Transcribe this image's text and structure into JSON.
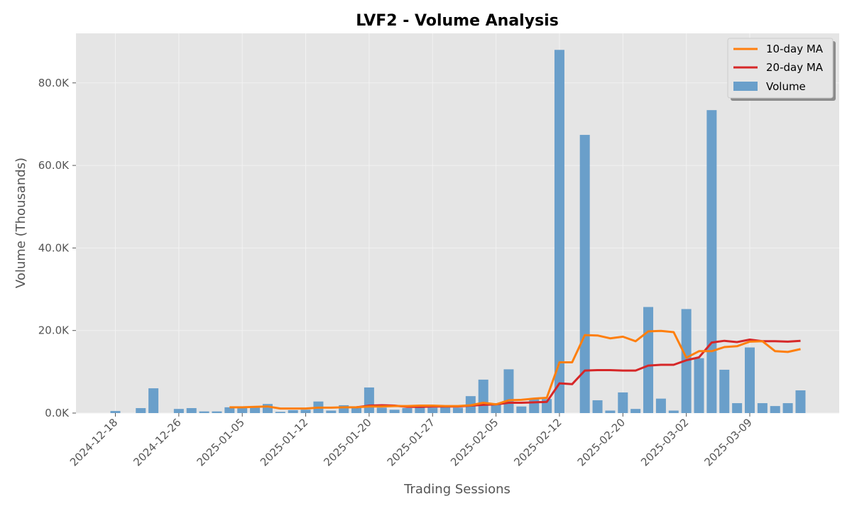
{
  "chart_data": {
    "type": "bar",
    "title": "LVF2 - Volume Analysis",
    "xlabel": "Trading Sessions",
    "ylabel": "Volume (Thousands)",
    "ylim": [
      0,
      92000
    ],
    "yticks": [
      0,
      20000,
      40000,
      60000,
      80000
    ],
    "ytick_labels": [
      "0.0K",
      "20.0K",
      "40.0K",
      "60.0K",
      "80.0K"
    ],
    "xtick_labels": [
      "2024-12-18",
      "2024-12-26",
      "2025-01-05",
      "2025-01-12",
      "2025-01-20",
      "2025-01-27",
      "2025-02-05",
      "2025-02-12",
      "2025-02-20",
      "2025-03-02",
      "2025-03-09"
    ],
    "xtick_positions": [
      0,
      5,
      10,
      15,
      20,
      25,
      30,
      35,
      40,
      45,
      50
    ],
    "grid": true,
    "legend_position": "top-right",
    "legend": [
      "10-day MA",
      "20-day MA",
      "Volume"
    ],
    "colors": {
      "volume": "#6a9fca",
      "ma10": "#ff7f0e",
      "ma20": "#d62728",
      "plot_bg": "#e5e5e5",
      "grid": "#f2f2f2"
    },
    "series": [
      {
        "name": "Volume",
        "kind": "bar",
        "values": [
          500,
          0,
          1200,
          6000,
          0,
          1000,
          1200,
          400,
          400,
          1400,
          1200,
          1300,
          2200,
          300,
          700,
          800,
          2800,
          600,
          1900,
          1500,
          6200,
          1300,
          800,
          1200,
          1400,
          1300,
          1500,
          1300,
          4100,
          8100,
          2400,
          10600,
          1600,
          3600,
          3400,
          88000,
          0,
          67400,
          3100,
          600,
          5000,
          1000,
          25700,
          3500,
          600,
          25200,
          13300,
          73400,
          10500,
          2400,
          15900,
          2400,
          1700,
          2400,
          5500
        ]
      },
      {
        "name": "10-day MA",
        "kind": "line",
        "values": [
          null,
          null,
          null,
          null,
          null,
          null,
          null,
          null,
          null,
          1400,
          1400,
          1500,
          1600,
          1100,
          1100,
          1100,
          1300,
          1300,
          1400,
          1400,
          1600,
          1600,
          1700,
          1700,
          1800,
          1800,
          1700,
          1700,
          1900,
          2500,
          2100,
          3100,
          3200,
          3500,
          3700,
          12300,
          12300,
          18900,
          18800,
          18100,
          18500,
          17400,
          19800,
          19900,
          19600,
          13400,
          15000,
          15000,
          16000,
          16200,
          17300,
          17400,
          15000,
          14800,
          15500
        ]
      },
      {
        "name": "20-day MA",
        "kind": "line",
        "values": [
          null,
          null,
          null,
          null,
          null,
          null,
          null,
          null,
          null,
          null,
          null,
          null,
          null,
          null,
          null,
          null,
          null,
          null,
          null,
          1400,
          1800,
          1900,
          1800,
          1500,
          1500,
          1600,
          1600,
          1600,
          1800,
          2000,
          2100,
          2500,
          2500,
          2600,
          2700,
          7200,
          7000,
          10300,
          10400,
          10400,
          10300,
          10300,
          11500,
          11700,
          11700,
          12800,
          13500,
          17100,
          17500,
          17200,
          17800,
          17400,
          17400,
          17300,
          17500
        ]
      }
    ]
  }
}
